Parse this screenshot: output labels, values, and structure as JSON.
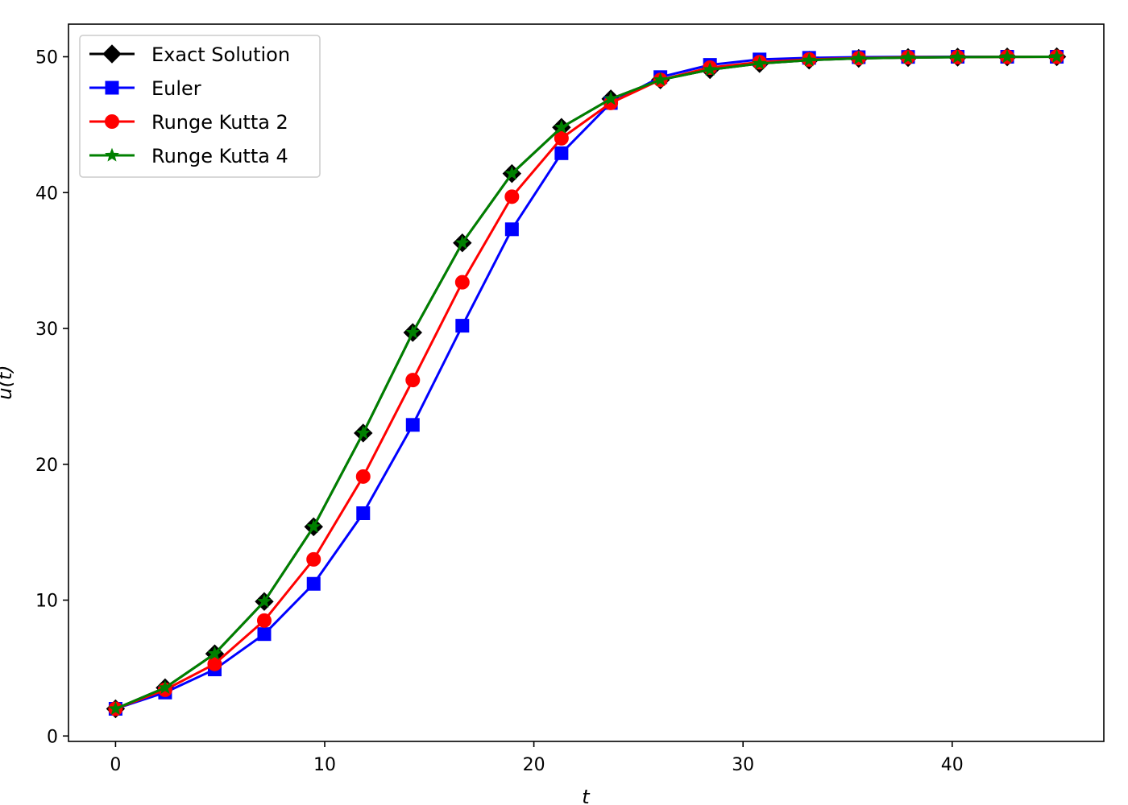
{
  "chart_data": {
    "type": "line",
    "title": "",
    "xlabel": "t",
    "ylabel": "u(t)",
    "xlim": [
      -2.25,
      47.25
    ],
    "ylim": [
      -0.4,
      52.4
    ],
    "xticks": [
      0,
      10,
      20,
      30,
      40
    ],
    "yticks": [
      0,
      10,
      20,
      30,
      40,
      50
    ],
    "grid": false,
    "legend_position": "top-left",
    "x": [
      0,
      2.37,
      4.74,
      7.11,
      9.47,
      11.84,
      14.21,
      16.58,
      18.95,
      21.32,
      23.68,
      26.05,
      28.42,
      30.79,
      33.16,
      35.53,
      37.89,
      40.26,
      42.63,
      45.0
    ],
    "series": [
      {
        "name": "Exact Solution",
        "color": "#000000",
        "marker": "diamond",
        "values": [
          2.0,
          3.55,
          6.05,
          9.9,
          15.4,
          22.3,
          29.7,
          36.3,
          41.4,
          44.8,
          46.9,
          48.3,
          49.05,
          49.5,
          49.75,
          49.88,
          49.94,
          49.97,
          49.99,
          50.0
        ]
      },
      {
        "name": "Euler",
        "color": "#0000ff",
        "marker": "square",
        "values": [
          2.0,
          3.2,
          4.9,
          7.5,
          11.2,
          16.4,
          22.9,
          30.2,
          37.3,
          42.9,
          46.6,
          48.5,
          49.4,
          49.8,
          49.92,
          49.97,
          49.99,
          50.0,
          50.0,
          50.0
        ]
      },
      {
        "name": "Runge Kutta 2",
        "color": "#ff0000",
        "marker": "circle",
        "values": [
          2.0,
          3.4,
          5.3,
          8.5,
          13.0,
          19.1,
          26.2,
          33.4,
          39.7,
          44.0,
          46.6,
          48.3,
          49.2,
          49.6,
          49.8,
          49.9,
          49.96,
          49.98,
          49.99,
          50.0
        ]
      },
      {
        "name": "Runge Kutta 4",
        "color": "#008000",
        "marker": "star",
        "values": [
          2.0,
          3.55,
          6.05,
          9.9,
          15.4,
          22.3,
          29.7,
          36.3,
          41.4,
          44.8,
          46.9,
          48.3,
          49.05,
          49.5,
          49.75,
          49.88,
          49.94,
          49.97,
          49.99,
          50.0
        ]
      }
    ]
  }
}
